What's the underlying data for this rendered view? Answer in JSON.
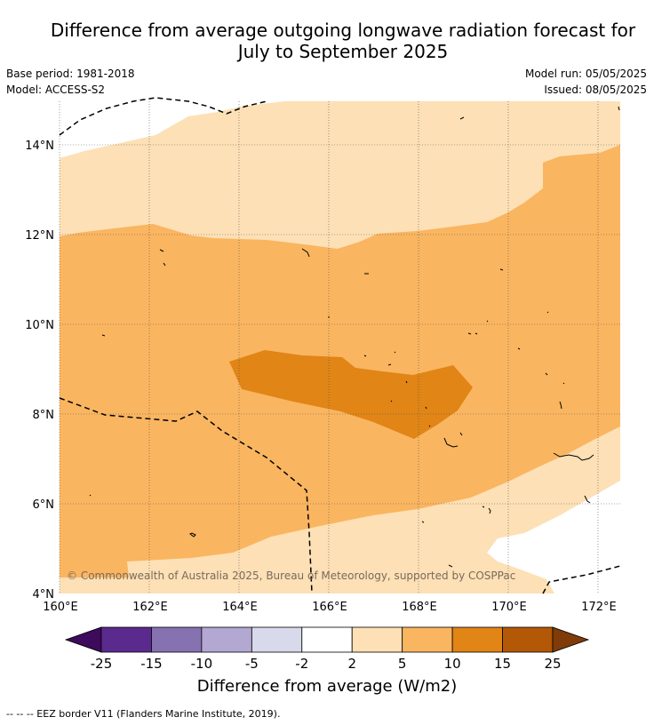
{
  "title_line1": "Difference from average outgoing longwave radiation forecast for",
  "title_line2": "July to September 2025",
  "base_period": "Base period: 1981-2018",
  "model": "Model: ACCESS-S2",
  "model_run": "Model run: 05/05/2025",
  "issued": "Issued: 08/05/2025",
  "copyright": "© Commonwealth of Australia 2025, Bureau of Meteorology, supported by COSPPac",
  "footer": "--  --  -- EEZ border V11 (Flanders Marine Institute, 2019).",
  "lon_ticks": [
    "160°E",
    "162°E",
    "164°E",
    "166°E",
    "168°E",
    "170°E",
    "172°E"
  ],
  "lat_ticks": [
    "14°N",
    "12°N",
    "10°N",
    "8°N",
    "6°N",
    "4°N"
  ],
  "colorbar": {
    "title": "Difference from average (W/m2)",
    "boundaries": [
      "-25",
      "-15",
      "-10",
      "-5",
      "-2",
      "2",
      "5",
      "10",
      "15",
      "25"
    ],
    "colors": [
      "#3d0a5c",
      "#5a2a8e",
      "#8672b0",
      "#b2a8d2",
      "#d9d9ec",
      "#ffffff",
      "#fde0b5",
      "#fab560",
      "#e08516",
      "#b35806",
      "#7f3b08"
    ]
  },
  "map_colors": {
    "range_2_5": "#fde0b5",
    "range_5_10": "#fab560",
    "range_10_15": "#e08516",
    "neutral": "#ffffff"
  }
}
